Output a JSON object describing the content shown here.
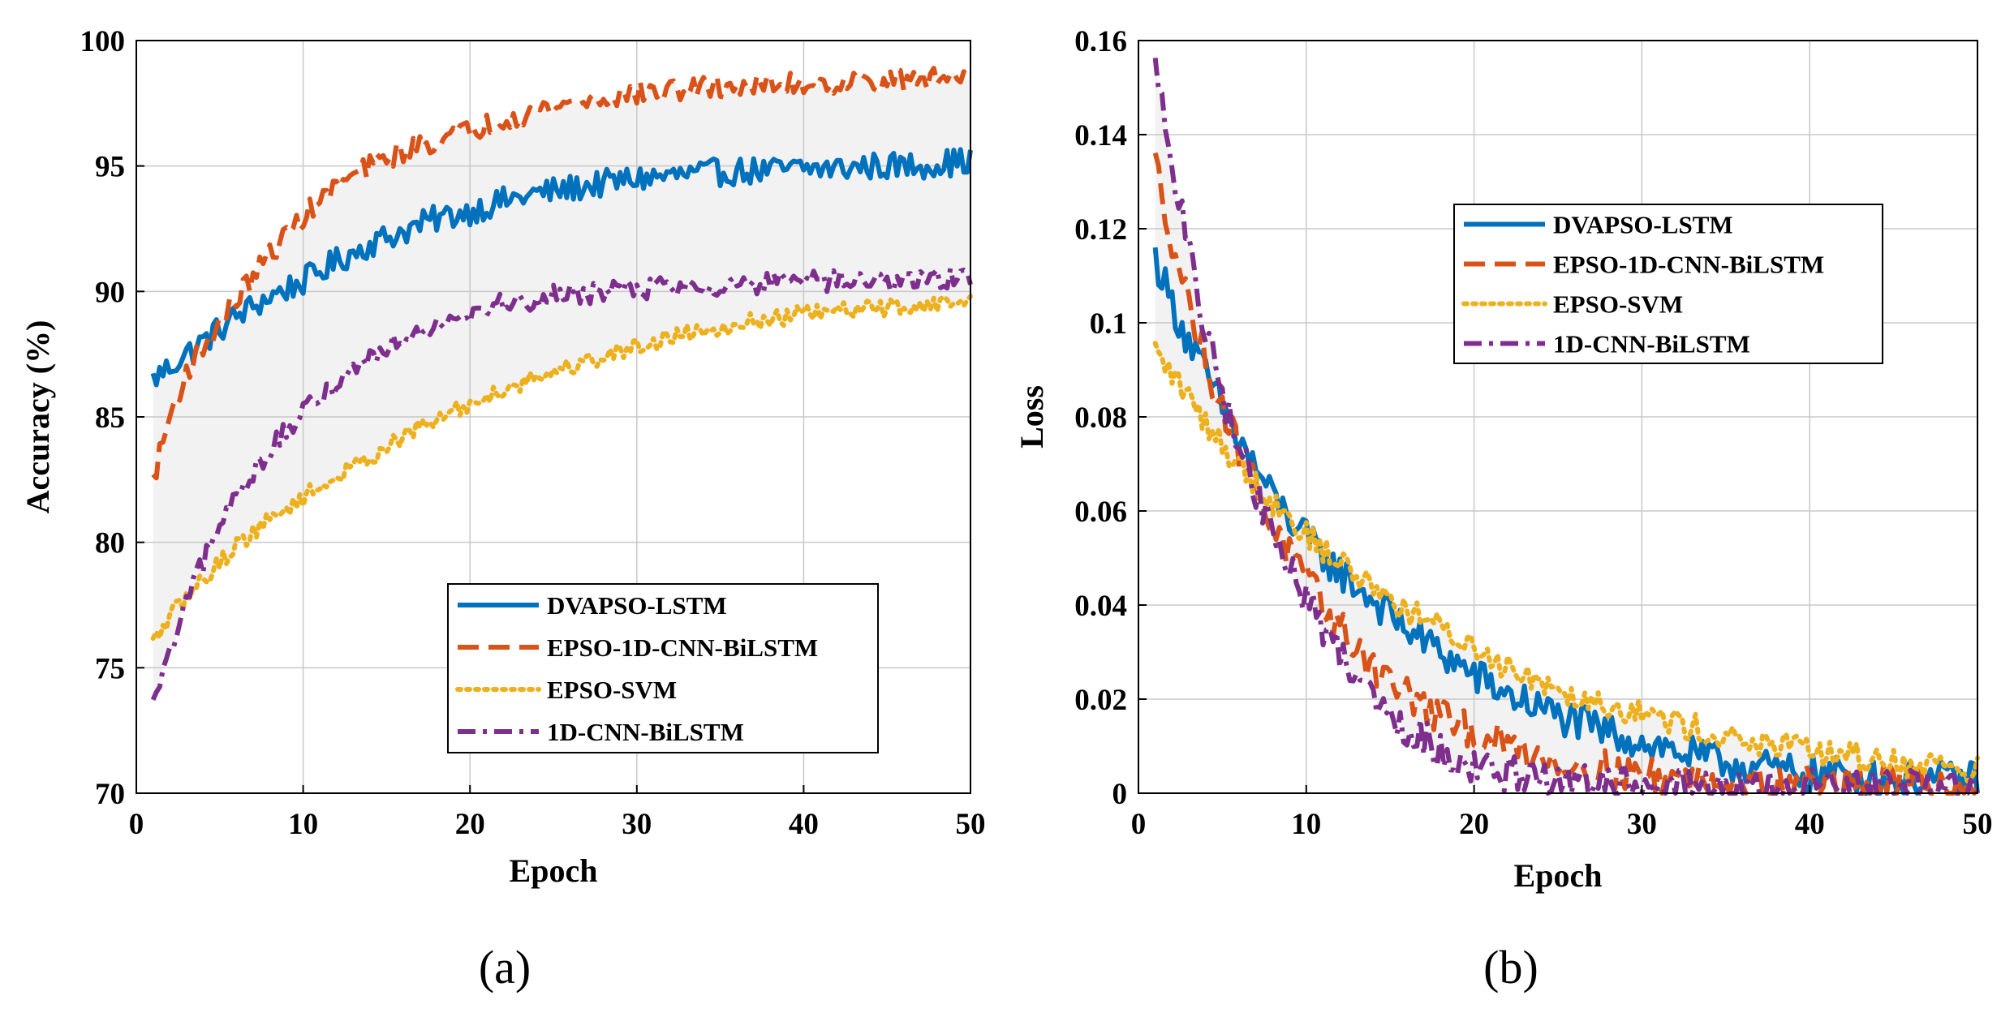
{
  "chart_data": [
    {
      "panel_label": "(a)",
      "type": "line",
      "xlabel": "Epoch",
      "ylabel": "Accuracy (%)",
      "xlim": [
        0,
        50
      ],
      "ylim": [
        70,
        100
      ],
      "xticks": [
        0,
        10,
        20,
        30,
        40,
        50
      ],
      "yticks": [
        70,
        75,
        80,
        85,
        90,
        95,
        100
      ],
      "tick_labels_x": [
        "0",
        "10",
        "20",
        "30",
        "40",
        "50"
      ],
      "tick_labels_y": [
        "70",
        "75",
        "80",
        "85",
        "90",
        "95",
        "100"
      ],
      "grid": true,
      "shaded_band": "between max and min series",
      "legend_position": "bottom-right",
      "series": [
        {
          "name": "DVAPSO-LSTM",
          "color": "#0072BD",
          "style": "solid",
          "noise": 0.55,
          "x": [
            1,
            2,
            3,
            4,
            5,
            6,
            8,
            10,
            12,
            14,
            16,
            18,
            20,
            22,
            24,
            26,
            28,
            30,
            32,
            34,
            36,
            38,
            40,
            42,
            44,
            46,
            48,
            50
          ],
          "y": [
            86.5,
            87.0,
            87.5,
            88.0,
            88.5,
            89.0,
            89.8,
            90.4,
            91.2,
            91.9,
            92.4,
            92.9,
            93.2,
            93.6,
            93.9,
            94.1,
            94.3,
            94.5,
            94.6,
            94.7,
            94.8,
            94.8,
            94.9,
            94.9,
            95.0,
            95.0,
            95.1,
            95.2
          ]
        },
        {
          "name": "EPSO-1D-CNN-BiLSTM",
          "color": "#D95319",
          "style": "dashed",
          "noise": 0.45,
          "x": [
            1,
            2,
            3,
            4,
            5,
            6,
            8,
            10,
            12,
            14,
            16,
            18,
            20,
            22,
            24,
            26,
            28,
            30,
            32,
            34,
            36,
            38,
            40,
            42,
            44,
            46,
            48,
            50
          ],
          "y": [
            82.5,
            85.0,
            86.8,
            87.8,
            88.8,
            89.7,
            91.5,
            93.0,
            94.2,
            95.0,
            95.6,
            96.0,
            96.4,
            96.9,
            97.2,
            97.5,
            97.7,
            97.9,
            98.0,
            98.1,
            98.2,
            98.2,
            98.3,
            98.3,
            98.4,
            98.4,
            98.5,
            98.6
          ]
        },
        {
          "name": "EPSO-SVM",
          "color": "#EDB120",
          "style": "dotted",
          "noise": 0.35,
          "x": [
            1,
            2,
            3,
            4,
            5,
            6,
            8,
            10,
            12,
            14,
            16,
            18,
            20,
            22,
            24,
            26,
            28,
            30,
            32,
            34,
            36,
            38,
            40,
            42,
            44,
            46,
            48,
            50
          ],
          "y": [
            76.0,
            77.0,
            77.8,
            78.5,
            79.2,
            79.9,
            80.9,
            81.8,
            82.6,
            83.4,
            84.2,
            84.9,
            85.5,
            86.1,
            86.6,
            87.0,
            87.4,
            87.8,
            88.2,
            88.5,
            88.7,
            88.9,
            89.1,
            89.2,
            89.3,
            89.4,
            89.5,
            89.6
          ]
        },
        {
          "name": "1D-CNN-BiLSTM",
          "color": "#7E2F8E",
          "style": "dashdot",
          "noise": 0.45,
          "x": [
            1,
            2,
            3,
            4,
            5,
            6,
            8,
            10,
            12,
            14,
            16,
            18,
            20,
            22,
            24,
            26,
            28,
            30,
            32,
            34,
            36,
            38,
            40,
            42,
            44,
            46,
            48,
            50
          ],
          "y": [
            73.5,
            75.5,
            77.5,
            79.2,
            80.6,
            81.9,
            83.7,
            85.1,
            86.4,
            87.4,
            88.2,
            88.8,
            89.2,
            89.5,
            89.7,
            89.9,
            90.0,
            90.1,
            90.2,
            90.2,
            90.3,
            90.3,
            90.4,
            90.4,
            90.4,
            90.5,
            90.5,
            90.5
          ]
        }
      ]
    },
    {
      "panel_label": "(b)",
      "type": "line",
      "xlabel": "Epoch",
      "ylabel": "Loss",
      "xlim": [
        0,
        50
      ],
      "ylim": [
        0,
        0.16
      ],
      "xticks": [
        0,
        10,
        20,
        30,
        40,
        50
      ],
      "yticks": [
        0,
        0.02,
        0.04,
        0.06,
        0.08,
        0.1,
        0.12,
        0.14,
        0.16
      ],
      "tick_labels_x": [
        "0",
        "10",
        "20",
        "30",
        "40",
        "50"
      ],
      "tick_labels_y": [
        "0",
        "0.02",
        "0.04",
        "0.06",
        "0.08",
        "0.1",
        "0.12",
        "0.14",
        "0.16"
      ],
      "grid": true,
      "shaded_band": "between max and min series",
      "legend_position": "top-right",
      "series": [
        {
          "name": "DVAPSO-LSTM",
          "color": "#0072BD",
          "style": "solid",
          "noise": 0.004,
          "x": [
            1,
            2,
            3,
            4,
            5,
            6,
            7,
            8,
            10,
            12,
            14,
            16,
            18,
            20,
            22,
            24,
            26,
            28,
            30,
            32,
            34,
            36,
            38,
            40,
            42,
            44,
            46,
            48,
            50
          ],
          "y": [
            0.114,
            0.104,
            0.096,
            0.089,
            0.082,
            0.075,
            0.069,
            0.063,
            0.054,
            0.047,
            0.041,
            0.035,
            0.03,
            0.025,
            0.021,
            0.018,
            0.015,
            0.013,
            0.011,
            0.009,
            0.007,
            0.006,
            0.005,
            0.004,
            0.004,
            0.003,
            0.003,
            0.003,
            0.003
          ]
        },
        {
          "name": "EPSO-1D-CNN-BiLSTM",
          "color": "#D95319",
          "style": "dashed",
          "noise": 0.004,
          "x": [
            1,
            2,
            3,
            4,
            5,
            6,
            7,
            8,
            10,
            12,
            14,
            16,
            18,
            20,
            22,
            24,
            26,
            28,
            30,
            32,
            34,
            36,
            38,
            40,
            42,
            44,
            46,
            48,
            50
          ],
          "y": [
            0.134,
            0.118,
            0.104,
            0.092,
            0.082,
            0.073,
            0.065,
            0.057,
            0.045,
            0.035,
            0.027,
            0.021,
            0.016,
            0.013,
            0.01,
            0.008,
            0.006,
            0.005,
            0.004,
            0.003,
            0.003,
            0.002,
            0.002,
            0.002,
            0.002,
            0.002,
            0.002,
            0.001,
            0.001
          ]
        },
        {
          "name": "EPSO-SVM",
          "color": "#EDB120",
          "style": "dotted",
          "noise": 0.003,
          "x": [
            1,
            2,
            3,
            4,
            5,
            6,
            7,
            8,
            10,
            12,
            14,
            16,
            18,
            20,
            22,
            24,
            26,
            28,
            30,
            32,
            34,
            36,
            38,
            40,
            42,
            44,
            46,
            48,
            50
          ],
          "y": [
            0.094,
            0.089,
            0.084,
            0.079,
            0.074,
            0.07,
            0.066,
            0.062,
            0.055,
            0.049,
            0.044,
            0.039,
            0.035,
            0.031,
            0.027,
            0.024,
            0.021,
            0.019,
            0.017,
            0.015,
            0.013,
            0.011,
            0.01,
            0.009,
            0.008,
            0.007,
            0.006,
            0.006,
            0.005
          ]
        },
        {
          "name": "1D-CNN-BiLSTM",
          "color": "#7E2F8E",
          "style": "dashdot",
          "noise": 0.004,
          "x": [
            1,
            2,
            3,
            4,
            5,
            6,
            7,
            8,
            10,
            12,
            14,
            16,
            18,
            20,
            22,
            24,
            26,
            28,
            30,
            32,
            34,
            36,
            38,
            40,
            42,
            44,
            46,
            48,
            50
          ],
          "y": [
            0.154,
            0.134,
            0.115,
            0.098,
            0.085,
            0.074,
            0.064,
            0.055,
            0.041,
            0.03,
            0.021,
            0.014,
            0.009,
            0.006,
            0.004,
            0.003,
            0.002,
            0.002,
            0.001,
            0.001,
            0.001,
            0.001,
            0.001,
            0.001,
            0.001,
            0.001,
            0.001,
            0.001,
            0.001
          ]
        }
      ]
    }
  ]
}
